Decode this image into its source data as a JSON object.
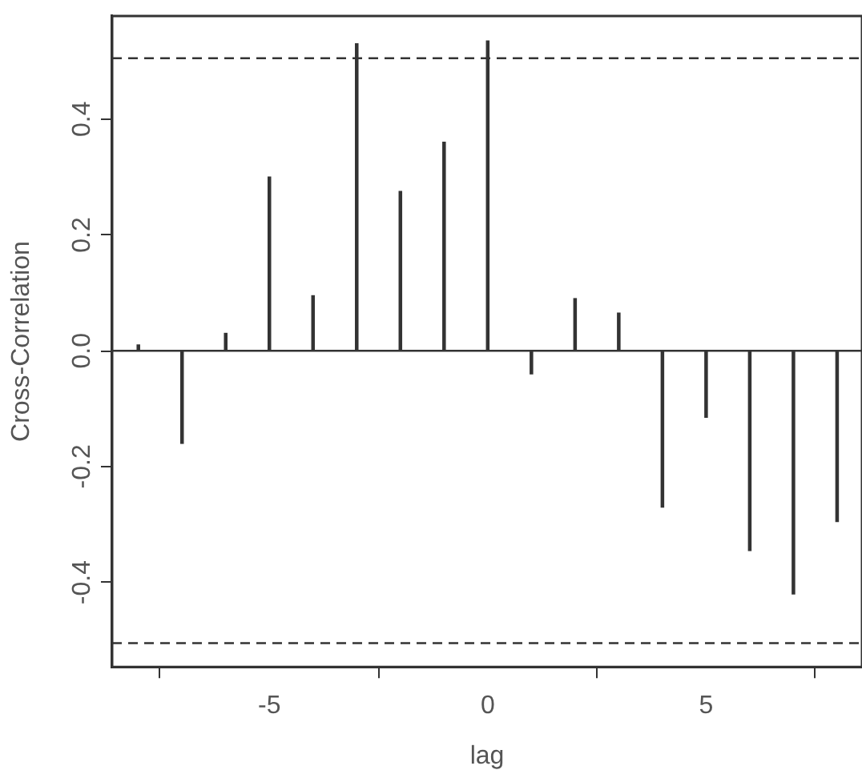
{
  "chart_data": {
    "type": "bar",
    "xlabel": "lag",
    "ylabel": "Cross-Correlation",
    "x": [
      -8,
      -7,
      -6,
      -5,
      -4,
      -3,
      -2,
      -1,
      0,
      1,
      2,
      3,
      4,
      5,
      6,
      7,
      8
    ],
    "series": [
      {
        "color": "#333333",
        "values": [
          0.01,
          -0.16,
          0.03,
          0.3,
          0.095,
          0.53,
          0.275,
          0.36,
          0.535,
          -0.04,
          0.09,
          0.065,
          -0.27,
          -0.115,
          -0.345,
          -0.42,
          -0.295
        ]
      }
    ],
    "xlim": [
      -8.6,
      8.57
    ],
    "ylim": [
      -0.546,
      0.578
    ],
    "xticks": [
      -5,
      0,
      5
    ],
    "yticks": [
      -0.4,
      -0.2,
      {
        "value": 0,
        "label": "0.0"
      },
      0.2,
      0.4
    ],
    "ref_lines": [
      {
        "axis": "y",
        "value": 0.505,
        "color": "#333333",
        "line_style": "dashed"
      },
      {
        "axis": "y",
        "value": -0.505,
        "color": "#333333",
        "line_style": "dashed"
      },
      {
        "axis": "y",
        "value": 0,
        "color": "#333333",
        "line_style": "solid"
      }
    ],
    "legend": false
  }
}
